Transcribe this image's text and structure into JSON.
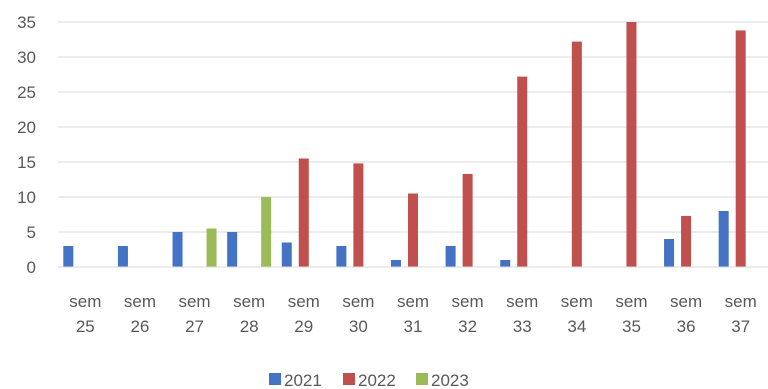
{
  "chart_data": {
    "type": "bar",
    "title": "",
    "xlabel": "",
    "ylabel": "",
    "categories": [
      [
        "sem",
        "25"
      ],
      [
        "sem",
        "26"
      ],
      [
        "sem",
        "27"
      ],
      [
        "sem",
        "28"
      ],
      [
        "sem",
        "29"
      ],
      [
        "sem",
        "30"
      ],
      [
        "sem",
        "31"
      ],
      [
        "sem",
        "32"
      ],
      [
        "sem",
        "33"
      ],
      [
        "sem",
        "34"
      ],
      [
        "sem",
        "35"
      ],
      [
        "sem",
        "36"
      ],
      [
        "sem",
        "37"
      ]
    ],
    "ylim": [
      0,
      35
    ],
    "yticks": [
      0,
      5,
      10,
      15,
      20,
      25,
      30,
      35
    ],
    "grid": true,
    "legend_position": "bottom",
    "series": [
      {
        "name": "2021",
        "color": "#4472C4",
        "values": [
          3,
          3,
          5,
          5,
          3.5,
          3,
          1,
          3,
          1,
          null,
          null,
          4,
          8
        ]
      },
      {
        "name": "2022",
        "color": "#C0504D",
        "values": [
          null,
          null,
          null,
          null,
          15.5,
          14.8,
          10.5,
          13.3,
          27.2,
          32.2,
          35,
          7.3,
          33.8
        ]
      },
      {
        "name": "2023",
        "color": "#9BBB59",
        "values": [
          null,
          null,
          5.5,
          10,
          null,
          null,
          null,
          null,
          null,
          null,
          null,
          null,
          null
        ]
      }
    ]
  }
}
